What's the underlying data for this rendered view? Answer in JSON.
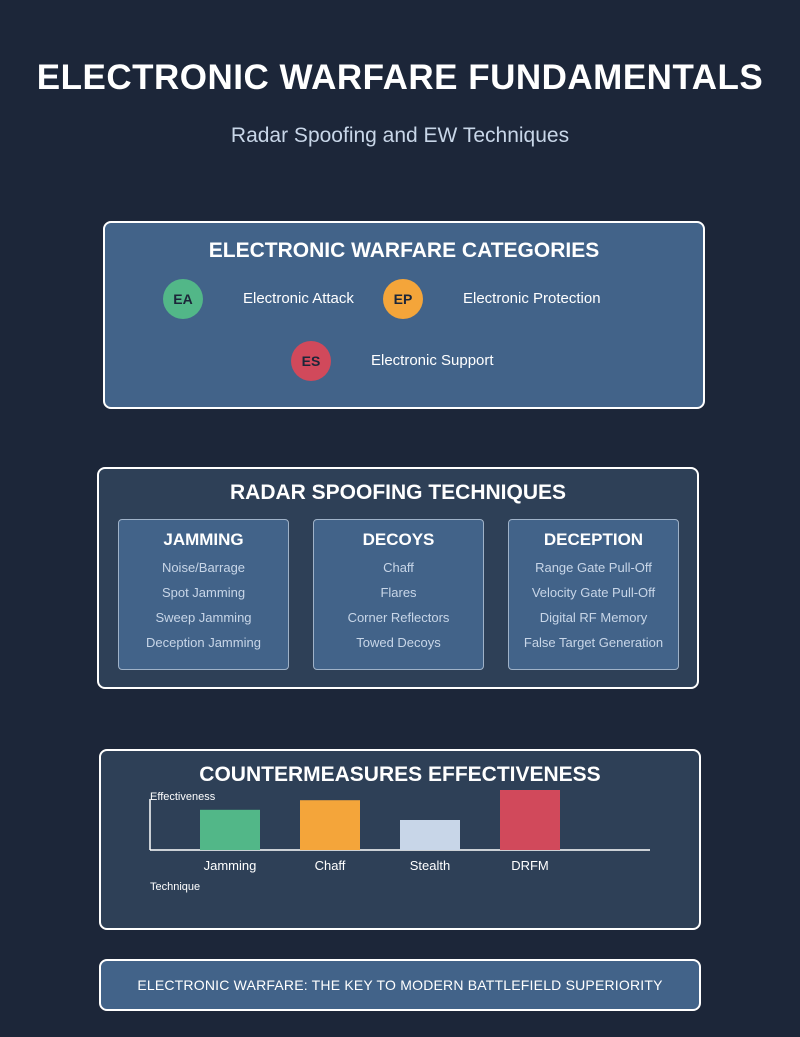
{
  "header": {
    "title": "ELECTRONIC WARFARE FUNDAMENTALS",
    "subtitle": "Radar Spoofing and EW Techniques"
  },
  "categories": {
    "title": "ELECTRONIC WARFARE CATEGORIES",
    "items": [
      {
        "abbr": "EA",
        "label": "Electronic Attack",
        "color": "#52b788"
      },
      {
        "abbr": "EP",
        "label": "Electronic Protection",
        "color": "#f4a53a"
      },
      {
        "abbr": "ES",
        "label": "Electronic Support",
        "color": "#d1495b"
      }
    ]
  },
  "spoofing": {
    "title": "RADAR SPOOFING TECHNIQUES",
    "columns": [
      {
        "title": "JAMMING",
        "items": [
          "Noise/Barrage",
          "Spot Jamming",
          "Sweep Jamming",
          "Deception Jamming"
        ]
      },
      {
        "title": "DECOYS",
        "items": [
          "Chaff",
          "Flares",
          "Corner Reflectors",
          "Towed Decoys"
        ]
      },
      {
        "title": "DECEPTION",
        "items": [
          "Range Gate Pull-Off",
          "Velocity Gate Pull-Off",
          "Digital RF Memory",
          "False Target Generation"
        ]
      }
    ]
  },
  "countermeasures": {
    "title": "COUNTERMEASURES EFFECTIVENESS"
  },
  "chart_data": {
    "type": "bar",
    "title": "COUNTERMEASURES EFFECTIVENESS",
    "ylabel": "Effectiveness",
    "xlabel": "Technique",
    "categories": [
      "Jamming",
      "Chaff",
      "Stealth",
      "DRFM"
    ],
    "values": [
      0.67,
      0.83,
      0.5,
      1.0
    ],
    "colors": [
      "#52b788",
      "#f4a53a",
      "#c8d6e8",
      "#d1495b"
    ],
    "ylim": [
      0,
      1
    ],
    "grid": false
  },
  "footer": {
    "text": "ELECTRONIC WARFARE: THE KEY TO MODERN BATTLEFIELD SUPERIORITY"
  }
}
